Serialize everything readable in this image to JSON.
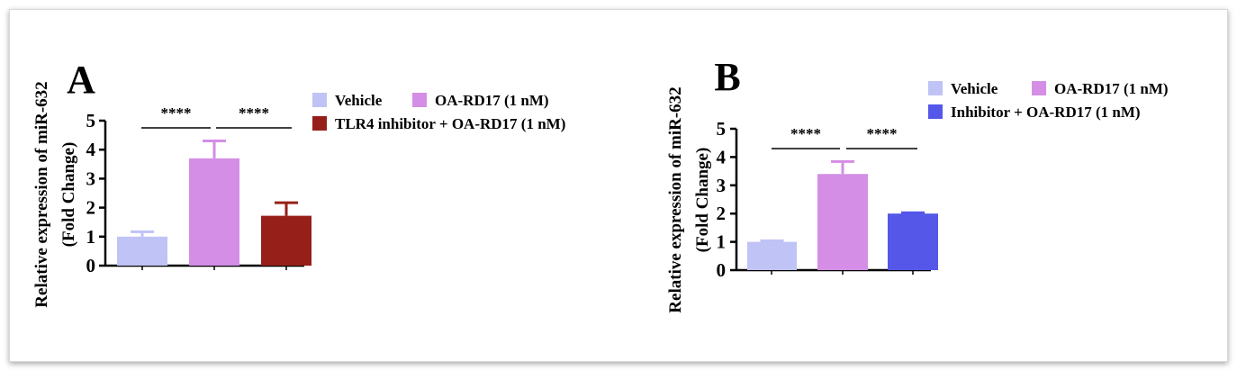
{
  "chart_data": [
    {
      "type": "bar",
      "panel_letter": "A",
      "ylabel_line1": "Relative expression of miR-632",
      "ylabel_line2": "(Fold Change)",
      "ylim": [
        0,
        5
      ],
      "yticks": [
        0,
        1,
        2,
        3,
        4,
        5
      ],
      "categories": [
        "Vehicle",
        "OA-RD17 (1 nM)",
        "TLR4 inhibitor + OA-RD17 (1 nM)"
      ],
      "values": [
        1.0,
        3.7,
        1.72
      ],
      "errors": [
        0.17,
        0.6,
        0.45
      ],
      "colors": [
        "#c0c3f5",
        "#d48ee6",
        "#962019"
      ],
      "significance": [
        {
          "from": 0,
          "to": 1,
          "label": "****"
        },
        {
          "from": 1,
          "to": 2,
          "label": "****"
        }
      ],
      "legend_placement": "right",
      "grid": false
    },
    {
      "type": "bar",
      "panel_letter": "B",
      "ylabel_line1": "Relative expression of miR-632",
      "ylabel_line2": "(Fold Change)",
      "ylim": [
        0,
        5
      ],
      "yticks": [
        0,
        1,
        2,
        3,
        4,
        5
      ],
      "categories": [
        "Vehicle",
        "OA-RD17 (1 nM)",
        "Inhibitor + OA-RD17 (1 nM)"
      ],
      "values": [
        1.0,
        3.4,
        2.0
      ],
      "errors": [
        0.04,
        0.44,
        0.03
      ],
      "colors": [
        "#c0c3f5",
        "#d48ee6",
        "#5457e8"
      ],
      "significance": [
        {
          "from": 0,
          "to": 1,
          "label": "****"
        },
        {
          "from": 1,
          "to": 2,
          "label": "****"
        }
      ],
      "legend_placement": "top-right",
      "grid": false
    }
  ]
}
